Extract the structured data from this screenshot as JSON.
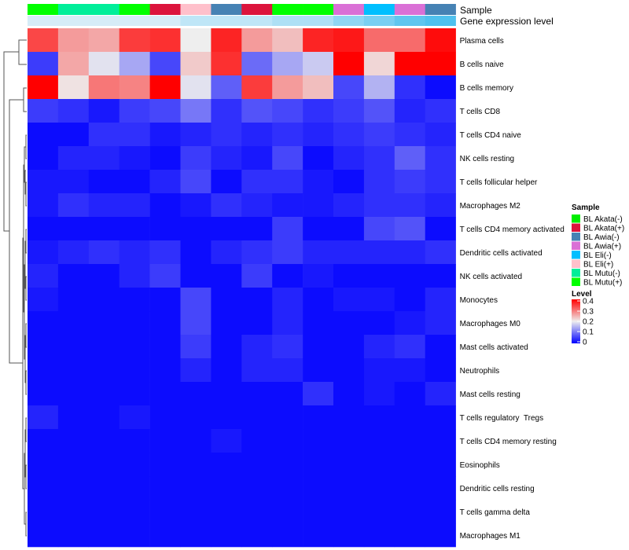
{
  "chart_data": {
    "type": "heatmap",
    "annotations": [
      {
        "label": "Sample"
      },
      {
        "label": "Gene expression level"
      }
    ],
    "columns": [
      {
        "sample": "BL Mutu(+)",
        "expr": "#d6ecf7"
      },
      {
        "sample": "BL Mutu(-)",
        "expr": "#d6ecf7"
      },
      {
        "sample": "BL Mutu(-)",
        "expr": "#d6ecf7"
      },
      {
        "sample": "BL Mutu(+)",
        "expr": "#d6ecf7"
      },
      {
        "sample": "BL Akata(+)",
        "expr": "#d6ecf7"
      },
      {
        "sample": "BL Eli(+)",
        "expr": "#bfe6f7"
      },
      {
        "sample": "BL Awia(-)",
        "expr": "#bfe6f7"
      },
      {
        "sample": "BL Akata(+)",
        "expr": "#bfe6f7"
      },
      {
        "sample": "BL Mutu(+)",
        "expr": "#aee0f5"
      },
      {
        "sample": "BL Mutu(+)",
        "expr": "#aee0f5"
      },
      {
        "sample": "BL Awia(+)",
        "expr": "#8fd6f3"
      },
      {
        "sample": "BL Eli(-)",
        "expr": "#79cff2"
      },
      {
        "sample": "BL Awia(+)",
        "expr": "#5fc6ef"
      },
      {
        "sample": "BL Awia(-)",
        "expr": "#4fc1ee"
      }
    ],
    "rows": [
      "Plasma cells",
      "B cells naive",
      "B cells memory",
      "T cells CD8",
      "T cells CD4 naive",
      "NK cells resting",
      "T cells follicular helper",
      "Macrophages M2",
      "T cells CD4 memory activated",
      "Dendritic cells activated",
      "NK cells activated",
      "Monocytes",
      "Macrophages M0",
      "Mast cells activated",
      "Neutrophils",
      "Mast cells resting",
      "T cells regulatory  Tregs",
      "T cells CD4 memory resting",
      "Eosinophils",
      "Dendritic cells resting",
      "T cells gamma delta",
      "Macrophages M1"
    ],
    "values": [
      [
        0.34,
        0.27,
        0.26,
        0.35,
        0.36,
        0.2,
        0.37,
        0.27,
        0.24,
        0.37,
        0.38,
        0.31,
        0.31,
        0.39
      ],
      [
        0.05,
        0.26,
        0.19,
        0.14,
        0.06,
        0.23,
        0.36,
        0.09,
        0.14,
        0.17,
        0.4,
        0.22,
        0.4,
        0.4
      ],
      [
        0.4,
        0.21,
        0.3,
        0.29,
        0.4,
        0.19,
        0.08,
        0.35,
        0.27,
        0.24,
        0.06,
        0.15,
        0.04,
        0.01
      ],
      [
        0.05,
        0.04,
        0.02,
        0.05,
        0.06,
        0.1,
        0.04,
        0.07,
        0.06,
        0.04,
        0.05,
        0.07,
        0.03,
        0.04
      ],
      [
        0.01,
        0.01,
        0.04,
        0.04,
        0.02,
        0.03,
        0.04,
        0.03,
        0.04,
        0.03,
        0.04,
        0.05,
        0.04,
        0.03
      ],
      [
        0.01,
        0.03,
        0.03,
        0.02,
        0.01,
        0.05,
        0.03,
        0.02,
        0.06,
        0.01,
        0.03,
        0.04,
        0.08,
        0.04
      ],
      [
        0.02,
        0.02,
        0.01,
        0.01,
        0.03,
        0.06,
        0.01,
        0.04,
        0.04,
        0.02,
        0.01,
        0.04,
        0.05,
        0.04
      ],
      [
        0.02,
        0.04,
        0.03,
        0.03,
        0.01,
        0.02,
        0.04,
        0.03,
        0.02,
        0.02,
        0.03,
        0.04,
        0.04,
        0.03
      ],
      [
        0.01,
        0.01,
        0.01,
        0.01,
        0.01,
        0.01,
        0.01,
        0.01,
        0.05,
        0.01,
        0.01,
        0.06,
        0.07,
        0.01
      ],
      [
        0.02,
        0.03,
        0.04,
        0.03,
        0.04,
        0.01,
        0.03,
        0.04,
        0.05,
        0.03,
        0.03,
        0.03,
        0.03,
        0.04
      ],
      [
        0.03,
        0.01,
        0.01,
        0.03,
        0.05,
        0.01,
        0.01,
        0.05,
        0.01,
        0.02,
        0.01,
        0.01,
        0.01,
        0.01
      ],
      [
        0.02,
        0.01,
        0.01,
        0.01,
        0.01,
        0.06,
        0.01,
        0.01,
        0.03,
        0.01,
        0.02,
        0.02,
        0.01,
        0.03
      ],
      [
        0.01,
        0.01,
        0.01,
        0.01,
        0.01,
        0.06,
        0.01,
        0.01,
        0.03,
        0.01,
        0.01,
        0.01,
        0.02,
        0.03
      ],
      [
        0.01,
        0.01,
        0.01,
        0.01,
        0.01,
        0.05,
        0.01,
        0.03,
        0.04,
        0.01,
        0.01,
        0.03,
        0.04,
        0.01
      ],
      [
        0.01,
        0.01,
        0.01,
        0.01,
        0.01,
        0.03,
        0.01,
        0.03,
        0.03,
        0.01,
        0.01,
        0.02,
        0.02,
        0.01
      ],
      [
        0.01,
        0.01,
        0.01,
        0.01,
        0.01,
        0.01,
        0.01,
        0.01,
        0.01,
        0.04,
        0.01,
        0.02,
        0.01,
        0.03
      ],
      [
        0.03,
        0.01,
        0.01,
        0.02,
        0.01,
        0.01,
        0.01,
        0.01,
        0.01,
        0.01,
        0.01,
        0.01,
        0.01,
        0.01
      ],
      [
        0.01,
        0.01,
        0.01,
        0.01,
        0.01,
        0.01,
        0.02,
        0.01,
        0.01,
        0.01,
        0.01,
        0.01,
        0.01,
        0.01
      ],
      [
        0.01,
        0.01,
        0.01,
        0.01,
        0.01,
        0.01,
        0.01,
        0.01,
        0.01,
        0.01,
        0.01,
        0.01,
        0.01,
        0.01
      ],
      [
        0.01,
        0.01,
        0.01,
        0.01,
        0.01,
        0.01,
        0.01,
        0.01,
        0.01,
        0.01,
        0.01,
        0.01,
        0.01,
        0.01
      ],
      [
        0.01,
        0.01,
        0.01,
        0.01,
        0.01,
        0.01,
        0.01,
        0.01,
        0.01,
        0.01,
        0.01,
        0.01,
        0.01,
        0.01
      ],
      [
        0.01,
        0.01,
        0.01,
        0.01,
        0.01,
        0.01,
        0.01,
        0.01,
        0.01,
        0.01,
        0.01,
        0.01,
        0.01,
        0.01
      ]
    ],
    "color_scale": {
      "min": 0,
      "max": 0.4,
      "stops": [
        {
          "value": 0,
          "color": "#0000ff"
        },
        {
          "value": 0.2,
          "color": "#eeeeee"
        },
        {
          "value": 0.4,
          "color": "#ff0000"
        }
      ]
    },
    "dendrogram": "rows",
    "legends": {
      "sample": {
        "title": "Sample",
        "items": [
          {
            "label": "BL Akata(-)",
            "color": "#00ee00"
          },
          {
            "label": "BL Akata(+)",
            "color": "#dc143c"
          },
          {
            "label": "BL Awia(-)",
            "color": "#4682b4"
          },
          {
            "label": "BL Awia(+)",
            "color": "#da70d6"
          },
          {
            "label": "BL Eli(-)",
            "color": "#00bfff"
          },
          {
            "label": "BL Eli(+)",
            "color": "#ffc0cb"
          },
          {
            "label": "BL Mutu(-)",
            "color": "#00ee99"
          },
          {
            "label": "BL Mutu(+)",
            "color": "#00ff00"
          }
        ]
      },
      "level": {
        "title": "Level",
        "ticks": [
          "0.4",
          "0.3",
          "0.2",
          "0.1",
          "0"
        ],
        "tick_values": [
          0.4,
          0.3,
          0.2,
          0.1,
          0
        ]
      }
    }
  }
}
